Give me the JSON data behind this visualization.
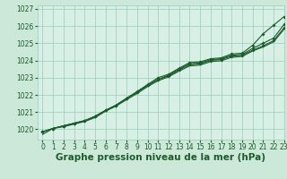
{
  "title": "Graphe pression niveau de la mer (hPa)",
  "background_color": "#cce8d8",
  "plot_bg_color": "#d8efe6",
  "grid_color": "#99ccbb",
  "line_color": "#1a5c2a",
  "marker_color": "#1a5c2a",
  "xlim": [
    -0.5,
    23
  ],
  "ylim": [
    1019.4,
    1027.2
  ],
  "yticks": [
    1020,
    1021,
    1022,
    1023,
    1024,
    1025,
    1026,
    1027
  ],
  "xticks": [
    0,
    1,
    2,
    3,
    4,
    5,
    6,
    7,
    8,
    9,
    10,
    11,
    12,
    13,
    14,
    15,
    16,
    17,
    18,
    19,
    20,
    21,
    22,
    23
  ],
  "series_with_markers": [
    [
      1019.85,
      1020.05,
      1020.2,
      1020.35,
      1020.5,
      1020.75,
      1021.1,
      1021.4,
      1021.8,
      1022.15,
      1022.55,
      1022.9,
      1023.1,
      1023.45,
      1023.75,
      1023.8,
      1024.0,
      1024.05,
      1024.25,
      1024.3,
      1024.6,
      1024.85,
      1025.15,
      1025.9
    ],
    [
      1019.85,
      1020.05,
      1020.2,
      1020.35,
      1020.5,
      1020.75,
      1021.1,
      1021.4,
      1021.8,
      1022.15,
      1022.55,
      1022.9,
      1023.15,
      1023.5,
      1023.8,
      1023.85,
      1024.05,
      1024.1,
      1024.3,
      1024.35,
      1024.7,
      1025.0,
      1025.3,
      1026.1
    ],
    [
      1019.85,
      1020.05,
      1020.2,
      1020.35,
      1020.5,
      1020.75,
      1021.1,
      1021.4,
      1021.8,
      1022.2,
      1022.6,
      1023.0,
      1023.2,
      1023.55,
      1023.88,
      1023.92,
      1024.1,
      1024.15,
      1024.38,
      1024.42,
      1024.88,
      1025.55,
      1026.05,
      1026.55
    ]
  ],
  "series_smooth": [
    [
      1019.7,
      1020.05,
      1020.15,
      1020.3,
      1020.45,
      1020.68,
      1021.05,
      1021.35,
      1021.72,
      1022.08,
      1022.48,
      1022.82,
      1023.05,
      1023.38,
      1023.68,
      1023.73,
      1023.93,
      1023.98,
      1024.18,
      1024.23,
      1024.55,
      1024.78,
      1025.08,
      1025.82
    ]
  ],
  "title_fontsize": 7.5,
  "tick_fontsize": 5.5,
  "title_color": "#1a5c2a",
  "tick_color": "#1a5c2a"
}
